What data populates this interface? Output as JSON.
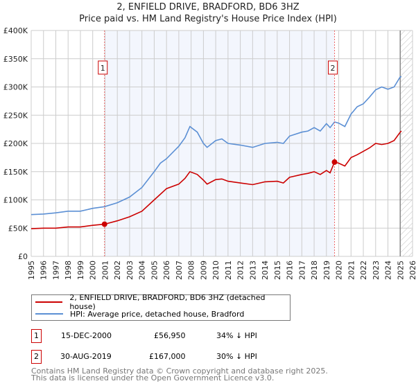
{
  "chart_data": {
    "type": "line",
    "title": "2, ENFIELD DRIVE, BRADFORD, BD6 3HZ",
    "subtitle": "Price paid vs. HM Land Registry's House Price Index (HPI)",
    "xlim": [
      1995,
      2026
    ],
    "ylim": [
      0,
      400000
    ],
    "x_ticks": [
      "1995",
      "1996",
      "1997",
      "1998",
      "1999",
      "2000",
      "2001",
      "2002",
      "2003",
      "2004",
      "2005",
      "2006",
      "2007",
      "2008",
      "2009",
      "2010",
      "2011",
      "2012",
      "2013",
      "2014",
      "2015",
      "2016",
      "2017",
      "2018",
      "2019",
      "2020",
      "2021",
      "2022",
      "2023",
      "2024",
      "2025",
      "2026"
    ],
    "y_ticks": [
      {
        "v": 0,
        "l": "£0"
      },
      {
        "v": 50000,
        "l": "£50K"
      },
      {
        "v": 100000,
        "l": "£100K"
      },
      {
        "v": 150000,
        "l": "£150K"
      },
      {
        "v": 200000,
        "l": "£200K"
      },
      {
        "v": 250000,
        "l": "£250K"
      },
      {
        "v": 300000,
        "l": "£300K"
      },
      {
        "v": 350000,
        "l": "£350K"
      },
      {
        "v": 400000,
        "l": "£400K"
      }
    ],
    "grid": true,
    "series": [
      {
        "name": "2, ENFIELD DRIVE, BRADFORD, BD6 3HZ (detached house)",
        "color": "#cc0000",
        "x": [
          1995,
          1996,
          1997,
          1998,
          1999,
          2000,
          2000.96,
          2002,
          2003,
          2004,
          2005,
          2005.5,
          2006,
          2007,
          2007.5,
          2007.9,
          2008.5,
          2009,
          2009.3,
          2010,
          2010.5,
          2011,
          2012,
          2013,
          2014,
          2015,
          2015.5,
          2016,
          2017,
          2017.5,
          2018,
          2018.5,
          2019,
          2019.3,
          2019.66,
          2020,
          2020.5,
          2021,
          2021.5,
          2022,
          2022.5,
          2023,
          2023.5,
          2024,
          2024.5,
          2025,
          2025.1
        ],
        "y": [
          49000,
          50000,
          50000,
          52000,
          52000,
          55000,
          56950,
          63000,
          70000,
          80000,
          100000,
          110000,
          120000,
          128000,
          138000,
          150000,
          145000,
          135000,
          128000,
          136000,
          137000,
          133000,
          130000,
          127000,
          132000,
          133000,
          130000,
          140000,
          145000,
          147000,
          150000,
          145000,
          152000,
          148000,
          167000,
          165000,
          160000,
          175000,
          180000,
          186000,
          192000,
          200000,
          198000,
          200000,
          205000,
          220000,
          222000
        ]
      },
      {
        "name": "HPI: Average price, detached house, Bradford",
        "color": "#5b8fd4",
        "x": [
          1995,
          1996,
          1997,
          1998,
          1999,
          2000,
          2000.96,
          2002,
          2003,
          2004,
          2005,
          2005.5,
          2006,
          2007,
          2007.5,
          2007.9,
          2008.5,
          2009,
          2009.3,
          2010,
          2010.5,
          2011,
          2012,
          2013,
          2014,
          2015,
          2015.5,
          2016,
          2017,
          2017.5,
          2018,
          2018.5,
          2019,
          2019.3,
          2019.66,
          2020,
          2020.5,
          2021,
          2021.5,
          2022,
          2022.5,
          2023,
          2023.5,
          2024,
          2024.5,
          2025,
          2025.1
        ],
        "y": [
          74000,
          75000,
          77000,
          80000,
          80000,
          85000,
          88000,
          95000,
          105000,
          122000,
          150000,
          165000,
          173000,
          195000,
          210000,
          230000,
          220000,
          200000,
          193000,
          205000,
          208000,
          200000,
          197000,
          193000,
          200000,
          202000,
          200000,
          213000,
          220000,
          222000,
          228000,
          222000,
          235000,
          228000,
          238000,
          236000,
          230000,
          252000,
          265000,
          270000,
          282000,
          295000,
          300000,
          296000,
          300000,
          318000,
          318000
        ]
      }
    ],
    "sales": [
      {
        "label": "1",
        "date": "15-DEC-2000",
        "x": 2000.96,
        "price": "£56,950",
        "value": 56950,
        "hpi": "34% ↓ HPI"
      },
      {
        "label": "2",
        "date": "30-AUG-2019",
        "x": 2019.66,
        "price": "£167,000",
        "value": 167000,
        "hpi": "30% ↓ HPI"
      }
    ],
    "data_end": 2025.0
  },
  "footer": {
    "line1": "Contains HM Land Registry data © Crown copyright and database right 2025.",
    "line2": "This data is licensed under the Open Government Licence v3.0."
  }
}
